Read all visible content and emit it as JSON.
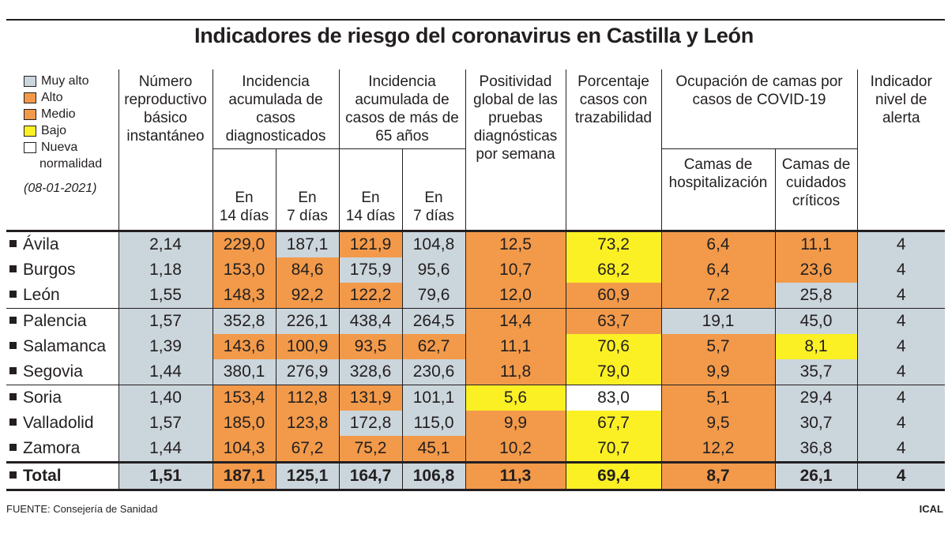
{
  "title": "Indicadores de riesgo del coronavirus en Castilla y León",
  "source": "FUENTE: Consejería de Sanidad",
  "agency": "ICAL",
  "legend": {
    "items": [
      {
        "label": "Muy alto",
        "color": "#cbd5dc"
      },
      {
        "label": "Alto",
        "color": "#f29a4a"
      },
      {
        "label": "Medio",
        "color": "#f29a4a"
      },
      {
        "label": "Bajo",
        "color": "#fbf024"
      },
      {
        "label": "Nueva",
        "label2": "normalidad",
        "color": "#ffffff"
      }
    ],
    "date": "(08-01-2021)"
  },
  "headers": {
    "numero": "Número reproductivo básico instantáneo",
    "ia_casos": "Incidencia acumulada de casos diagnosticados",
    "ia_65": "Incidencia acumulada de casos de más de 65 años",
    "positividad": "Positividad global de las pruebas diagnósticas por semana",
    "trazabilidad": "Porcentaje casos con trazabilidad",
    "ocupacion": "Ocupación de camas por casos de COVID-19",
    "alerta": "Indicador nivel de alerta",
    "en14_line1": "En",
    "en14_line2": "14 días",
    "en7_line1": "En",
    "en7_line2": "7 días",
    "camas_hosp": "Camas de hospitalización",
    "camas_ucc": "Camas de cuidados críticos"
  },
  "chart_data": {
    "type": "table",
    "title": "Indicadores de riesgo del coronavirus en Castilla y León",
    "date": "(08-01-2021)",
    "columns": [
      "Número reproductivo básico instantáneo",
      "Incidencia acumulada de casos diagnosticados - En 14 días",
      "Incidencia acumulada de casos diagnosticados - En 7 días",
      "Incidencia acumulada de casos de más de 65 años - En 14 días",
      "Incidencia acumulada de casos de más de 65 años - En 7 días",
      "Positividad global de las pruebas diagnósticas por semana",
      "Porcentaje casos con trazabilidad",
      "Ocupación de camas por casos de COVID-19 - Camas de hospitalización",
      "Ocupación de camas por casos de COVID-19 - Camas de cuidados críticos",
      "Indicador nivel de alerta"
    ],
    "rows": [
      {
        "name": "Ávila",
        "values": [
          "2,14",
          "229,0",
          "187,1",
          "121,9",
          "104,8",
          "12,5",
          "73,2",
          "6,4",
          "11,1",
          "4"
        ],
        "colors": [
          "#cbd5dc",
          "#f29a4a",
          "#cbd5dc",
          "#f29a4a",
          "#cbd5dc",
          "#f29a4a",
          "#fbf024",
          "#f29a4a",
          "#f29a4a",
          "#cbd5dc"
        ]
      },
      {
        "name": "Burgos",
        "values": [
          "1,18",
          "153,0",
          "84,6",
          "175,9",
          "95,6",
          "10,7",
          "68,2",
          "6,4",
          "23,6",
          "4"
        ],
        "colors": [
          "#cbd5dc",
          "#f29a4a",
          "#f29a4a",
          "#cbd5dc",
          "#cbd5dc",
          "#f29a4a",
          "#fbf024",
          "#f29a4a",
          "#f29a4a",
          "#cbd5dc"
        ]
      },
      {
        "name": "León",
        "values": [
          "1,55",
          "148,3",
          "92,2",
          "122,2",
          "79,6",
          "12,0",
          "60,9",
          "7,2",
          "25,8",
          "4"
        ],
        "colors": [
          "#cbd5dc",
          "#f29a4a",
          "#f29a4a",
          "#f29a4a",
          "#cbd5dc",
          "#f29a4a",
          "#f29a4a",
          "#f29a4a",
          "#cbd5dc",
          "#cbd5dc"
        ]
      },
      {
        "name": "Palencia",
        "values": [
          "1,57",
          "352,8",
          "226,1",
          "438,4",
          "264,5",
          "14,4",
          "63,7",
          "19,1",
          "45,0",
          "4"
        ],
        "colors": [
          "#cbd5dc",
          "#cbd5dc",
          "#cbd5dc",
          "#cbd5dc",
          "#cbd5dc",
          "#f29a4a",
          "#f29a4a",
          "#cbd5dc",
          "#cbd5dc",
          "#cbd5dc"
        ]
      },
      {
        "name": "Salamanca",
        "values": [
          "1,39",
          "143,6",
          "100,9",
          "93,5",
          "62,7",
          "11,1",
          "70,6",
          "5,7",
          "8,1",
          "4"
        ],
        "colors": [
          "#cbd5dc",
          "#f29a4a",
          "#f29a4a",
          "#f29a4a",
          "#f29a4a",
          "#f29a4a",
          "#fbf024",
          "#f29a4a",
          "#fbf024",
          "#cbd5dc"
        ]
      },
      {
        "name": "Segovia",
        "values": [
          "1,44",
          "380,1",
          "276,9",
          "328,6",
          "230,6",
          "11,8",
          "79,0",
          "9,9",
          "35,7",
          "4"
        ],
        "colors": [
          "#cbd5dc",
          "#cbd5dc",
          "#cbd5dc",
          "#cbd5dc",
          "#cbd5dc",
          "#f29a4a",
          "#fbf024",
          "#f29a4a",
          "#cbd5dc",
          "#cbd5dc"
        ]
      },
      {
        "name": "Soria",
        "values": [
          "1,40",
          "153,4",
          "112,8",
          "131,9",
          "101,1",
          "5,6",
          "83,0",
          "5,1",
          "29,4",
          "4"
        ],
        "colors": [
          "#cbd5dc",
          "#f29a4a",
          "#f29a4a",
          "#f29a4a",
          "#cbd5dc",
          "#fbf024",
          "#ffffff",
          "#f29a4a",
          "#cbd5dc",
          "#cbd5dc"
        ]
      },
      {
        "name": "Valladolid",
        "values": [
          "1,57",
          "185,0",
          "123,8",
          "172,8",
          "115,0",
          "9,9",
          "67,7",
          "9,5",
          "30,7",
          "4"
        ],
        "colors": [
          "#cbd5dc",
          "#f29a4a",
          "#f29a4a",
          "#cbd5dc",
          "#cbd5dc",
          "#f29a4a",
          "#fbf024",
          "#f29a4a",
          "#cbd5dc",
          "#cbd5dc"
        ]
      },
      {
        "name": "Zamora",
        "values": [
          "1,44",
          "104,3",
          "67,2",
          "75,2",
          "45,1",
          "10,2",
          "70,7",
          "12,2",
          "36,8",
          "4"
        ],
        "colors": [
          "#cbd5dc",
          "#f29a4a",
          "#f29a4a",
          "#f29a4a",
          "#f29a4a",
          "#f29a4a",
          "#fbf024",
          "#f29a4a",
          "#cbd5dc",
          "#cbd5dc"
        ]
      },
      {
        "name": "Total",
        "values": [
          "1,51",
          "187,1",
          "125,1",
          "164,7",
          "106,8",
          "11,3",
          "69,4",
          "8,7",
          "26,1",
          "4"
        ],
        "colors": [
          "#cbd5dc",
          "#f29a4a",
          "#cbd5dc",
          "#cbd5dc",
          "#cbd5dc",
          "#f29a4a",
          "#fbf024",
          "#f29a4a",
          "#cbd5dc",
          "#cbd5dc"
        ]
      }
    ]
  }
}
